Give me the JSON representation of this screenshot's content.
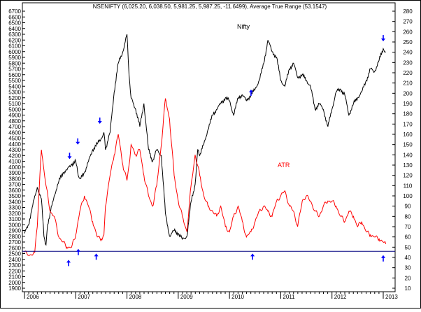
{
  "chart_data": {
    "type": "line",
    "title": "NSENIFTY (6,025.20, 6,038.50, 5,981.25, 5,987.25, -11.6499), Average True Range (53.1547)",
    "x_labels": [
      "2006",
      "2007",
      "2008",
      "2009",
      "2010",
      "2011",
      "2012",
      "2013"
    ],
    "left_axis": {
      "min": 1900,
      "max": 6700,
      "ticks": [
        1900,
        2000,
        2100,
        2200,
        2300,
        2400,
        2500,
        2600,
        2700,
        2800,
        2900,
        3000,
        3100,
        3200,
        3300,
        3400,
        3500,
        3600,
        3700,
        3800,
        3900,
        4000,
        4100,
        4200,
        4300,
        4400,
        4500,
        4600,
        4700,
        4800,
        4900,
        5000,
        5100,
        5200,
        5300,
        5400,
        5500,
        5600,
        5700,
        5800,
        5900,
        6000,
        6100,
        6200,
        6300,
        6400,
        6500,
        6600,
        6700
      ]
    },
    "right_axis": {
      "min": 10,
      "max": 280,
      "ticks": [
        10,
        20,
        30,
        40,
        50,
        60,
        70,
        80,
        90,
        100,
        110,
        120,
        130,
        140,
        150,
        160,
        170,
        180,
        190,
        200,
        210,
        220,
        230,
        240,
        250,
        260,
        270,
        280
      ]
    },
    "series": [
      {
        "name": "Nifty",
        "color": "#000000",
        "axis": "left",
        "x": [
          2006.0,
          2006.08,
          2006.15,
          2006.25,
          2006.33,
          2006.38,
          2006.42,
          2006.45,
          2006.5,
          2006.58,
          2006.67,
          2006.75,
          2006.83,
          2006.92,
          2007.0,
          2007.05,
          2007.1,
          2007.17,
          2007.25,
          2007.33,
          2007.42,
          2007.5,
          2007.55,
          2007.58,
          2007.67,
          2007.75,
          2007.83,
          2007.92,
          2008.0,
          2008.04,
          2008.08,
          2008.17,
          2008.25,
          2008.33,
          2008.42,
          2008.5,
          2008.58,
          2008.67,
          2008.75,
          2008.83,
          2008.92,
          2009.0,
          2009.08,
          2009.17,
          2009.25,
          2009.33,
          2009.38,
          2009.42,
          2009.5,
          2009.58,
          2009.67,
          2009.75,
          2009.83,
          2009.92,
          2010.0,
          2010.08,
          2010.17,
          2010.25,
          2010.33,
          2010.42,
          2010.5,
          2010.58,
          2010.67,
          2010.75,
          2010.83,
          2010.92,
          2011.0,
          2011.08,
          2011.17,
          2011.25,
          2011.33,
          2011.42,
          2011.5,
          2011.58,
          2011.67,
          2011.75,
          2011.83,
          2011.92,
          2012.0,
          2012.08,
          2012.17,
          2012.25,
          2012.33,
          2012.42,
          2012.5,
          2012.58,
          2012.67,
          2012.75,
          2012.83,
          2012.92,
          2013.0,
          2013.05
        ],
        "values": [
          2850,
          3000,
          3300,
          3650,
          3450,
          2800,
          2650,
          3000,
          3200,
          3500,
          3750,
          3900,
          3950,
          4050,
          4100,
          3850,
          3800,
          3900,
          4100,
          4300,
          4400,
          4500,
          4600,
          4300,
          4600,
          5300,
          5800,
          6000,
          6300,
          5600,
          5200,
          5000,
          4700,
          5100,
          4300,
          4100,
          4300,
          4200,
          3200,
          2800,
          2900,
          2850,
          2750,
          2800,
          3400,
          3700,
          4300,
          4200,
          4400,
          4650,
          4900,
          5000,
          5100,
          5200,
          5150,
          4900,
          5200,
          5250,
          5150,
          5250,
          5350,
          5500,
          5800,
          6200,
          6000,
          5900,
          5500,
          5400,
          5700,
          5800,
          5550,
          5600,
          5500,
          5400,
          5000,
          5100,
          5000,
          4700,
          5000,
          5300,
          5350,
          5250,
          4900,
          5100,
          5200,
          5300,
          5500,
          5700,
          5650,
          5850,
          6050,
          5990
        ]
      },
      {
        "name": "ATR",
        "color": "#ff0000",
        "axis": "right",
        "x": [
          2006.0,
          2006.1,
          2006.2,
          2006.25,
          2006.3,
          2006.33,
          2006.42,
          2006.5,
          2006.58,
          2006.67,
          2006.75,
          2006.83,
          2006.92,
          2007.0,
          2007.08,
          2007.17,
          2007.25,
          2007.33,
          2007.42,
          2007.5,
          2007.55,
          2007.58,
          2007.67,
          2007.75,
          2007.83,
          2007.92,
          2008.0,
          2008.04,
          2008.08,
          2008.17,
          2008.25,
          2008.33,
          2008.42,
          2008.5,
          2008.58,
          2008.67,
          2008.75,
          2008.83,
          2008.92,
          2009.0,
          2009.08,
          2009.17,
          2009.25,
          2009.33,
          2009.42,
          2009.5,
          2009.58,
          2009.67,
          2009.75,
          2009.83,
          2009.92,
          2010.0,
          2010.08,
          2010.17,
          2010.25,
          2010.33,
          2010.42,
          2010.5,
          2010.58,
          2010.67,
          2010.75,
          2010.83,
          2010.92,
          2011.0,
          2011.08,
          2011.17,
          2011.25,
          2011.33,
          2011.42,
          2011.5,
          2011.58,
          2011.67,
          2011.75,
          2011.83,
          2011.92,
          2012.0,
          2012.08,
          2012.17,
          2012.25,
          2012.33,
          2012.42,
          2012.5,
          2012.58,
          2012.67,
          2012.75,
          2012.83,
          2012.92,
          2013.0,
          2013.05
        ],
        "values": [
          45,
          42,
          45,
          70,
          120,
          145,
          110,
          85,
          80,
          60,
          55,
          50,
          50,
          62,
          85,
          100,
          90,
          75,
          60,
          58,
          62,
          90,
          120,
          140,
          160,
          130,
          115,
          130,
          150,
          140,
          145,
          120,
          100,
          90,
          110,
          150,
          195,
          175,
          120,
          95,
          80,
          65,
          110,
          140,
          120,
          100,
          90,
          85,
          80,
          90,
          70,
          65,
          80,
          90,
          75,
          60,
          65,
          75,
          85,
          90,
          85,
          80,
          95,
          100,
          105,
          90,
          85,
          70,
          95,
          100,
          95,
          85,
          80,
          90,
          95,
          95,
          90,
          80,
          75,
          85,
          80,
          70,
          75,
          65,
          62,
          60,
          58,
          55,
          53
        ]
      }
    ],
    "horizontal_line": {
      "axis": "left",
      "value": 2540,
      "color": "#000080"
    },
    "annotations": [
      {
        "text": "Nifty",
        "color": "#000000"
      },
      {
        "text": "ATR",
        "color": "#ff0000"
      }
    ],
    "arrows": {
      "color": "#0000ff",
      "down": [
        {
          "x": 2006.88,
          "value": 4150
        },
        {
          "x": 2007.04,
          "value": 4400
        },
        {
          "x": 2007.47,
          "value": 4760
        },
        {
          "x": 2013.0,
          "value": 6190
        }
      ],
      "up": [
        {
          "x": 2006.86,
          "value": 2380
        },
        {
          "x": 2007.05,
          "value": 2570
        },
        {
          "x": 2007.4,
          "value": 2490
        },
        {
          "x": 2010.42,
          "value": 5330
        },
        {
          "x": 2010.45,
          "value": 2490
        },
        {
          "x": 2013.0,
          "value": 2460
        }
      ]
    },
    "grid": false,
    "legend": "none"
  }
}
